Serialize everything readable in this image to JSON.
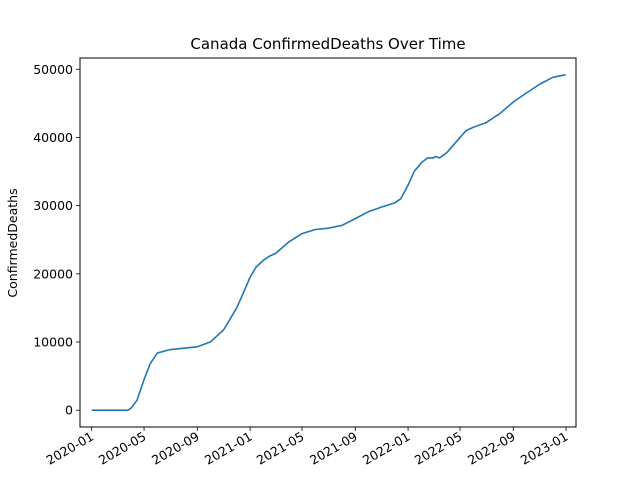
{
  "chart_data": {
    "type": "line",
    "title": "Canada  ConfirmedDeaths Over Time",
    "xlabel": "",
    "ylabel": "ConfirmedDeaths",
    "x_axis_type": "date",
    "xlim": [
      "2019-12-05",
      "2023-01-24"
    ],
    "ylim": [
      -2460,
      51650
    ],
    "x_ticks": [
      "2020-01",
      "2020-05",
      "2020-09",
      "2021-01",
      "2021-05",
      "2021-09",
      "2022-01",
      "2022-05",
      "2022-09",
      "2023-01"
    ],
    "y_ticks": [
      0,
      10000,
      20000,
      30000,
      40000,
      50000
    ],
    "grid": false,
    "line_color": "#1f77b4",
    "series": [
      {
        "x": [
          "2020-01-01",
          "2020-02-15",
          "2020-03-01",
          "2020-03-15",
          "2020-03-25",
          "2020-04-01",
          "2020-04-15",
          "2020-05-01",
          "2020-05-15",
          "2020-06-01",
          "2020-07-01",
          "2020-08-01",
          "2020-09-01",
          "2020-10-01",
          "2020-11-01",
          "2020-12-01",
          "2020-12-15",
          "2021-01-01",
          "2021-01-15",
          "2021-02-01",
          "2021-02-15",
          "2021-03-01",
          "2021-04-01",
          "2021-05-01",
          "2021-06-01",
          "2021-07-01",
          "2021-08-01",
          "2021-09-01",
          "2021-10-01",
          "2021-11-01",
          "2021-12-01",
          "2021-12-15",
          "2022-01-01",
          "2022-01-15",
          "2022-02-01",
          "2022-02-15",
          "2022-03-01",
          "2022-03-05",
          "2022-03-15",
          "2022-04-01",
          "2022-05-01",
          "2022-05-15",
          "2022-06-01",
          "2022-07-01",
          "2022-08-01",
          "2022-09-01",
          "2022-10-01",
          "2022-11-01",
          "2022-12-01",
          "2022-12-31"
        ],
        "y": [
          0,
          0,
          0,
          0,
          20,
          300,
          1500,
          4500,
          6800,
          8400,
          8900,
          9100,
          9300,
          10000,
          11800,
          15000,
          17000,
          19500,
          21000,
          22000,
          22600,
          23000,
          24700,
          25900,
          26500,
          26700,
          27100,
          28100,
          29100,
          29800,
          30400,
          31000,
          33000,
          35000,
          36300,
          37000,
          37000,
          37200,
          37000,
          37800,
          40000,
          41000,
          41500,
          42200,
          43500,
          45200,
          46500,
          47800,
          48800,
          49200
        ]
      }
    ]
  }
}
